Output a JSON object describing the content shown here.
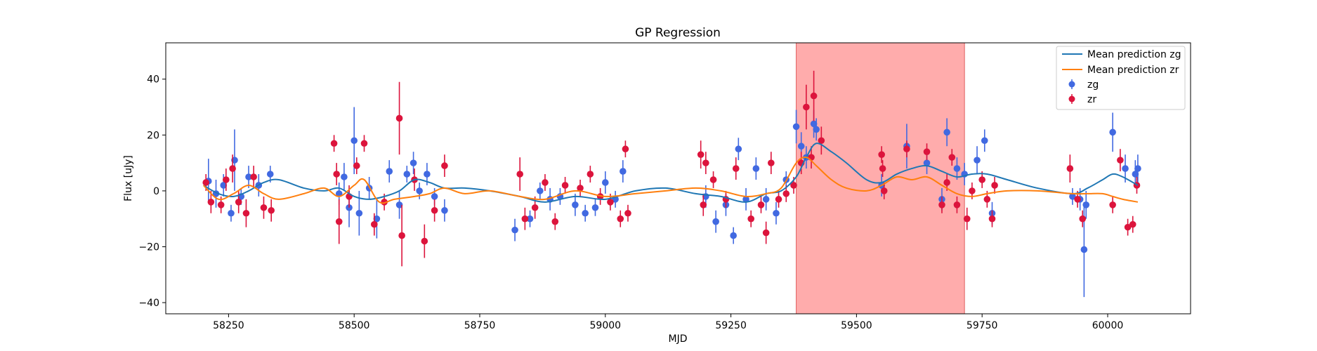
{
  "chart_data": {
    "type": "scatter",
    "title": "GP Regression",
    "xlabel": "MJD",
    "ylabel": "Flux [uJy]",
    "xlim": [
      58125,
      60165
    ],
    "ylim": [
      -44,
      53
    ],
    "xticks": [
      58250,
      58500,
      58750,
      59000,
      59250,
      59500,
      59750,
      60000
    ],
    "yticks": [
      -40,
      -20,
      0,
      20,
      40
    ],
    "grid": false,
    "legend_position": "top-right",
    "highlight_span": {
      "x": [
        59380,
        59715
      ],
      "color": "#ff7f7f"
    },
    "lines": [
      {
        "name": "Mean prediction zg",
        "color": "#1f77b4",
        "x": [
          58200,
          58230,
          58260,
          58290,
          58320,
          58350,
          58400,
          58440,
          58470,
          58500,
          58530,
          58560,
          58590,
          58620,
          58650,
          58680,
          58720,
          58770,
          58830,
          58880,
          58940,
          59000,
          59060,
          59120,
          59180,
          59230,
          59280,
          59320,
          59350,
          59380,
          59400,
          59420,
          59450,
          59480,
          59520,
          59550,
          59580,
          59610,
          59640,
          59670,
          59700,
          59730,
          59760,
          59800,
          59860,
          59930,
          59960,
          59990,
          60010,
          60030,
          60060
        ],
        "y": [
          2,
          -1,
          -2,
          0,
          3,
          4,
          1,
          0,
          1,
          -2,
          -3,
          -2,
          0,
          4,
          3,
          1,
          1,
          0,
          -2,
          -4,
          -2,
          -3,
          0,
          1,
          -1,
          -2,
          -4,
          -1,
          0,
          5,
          12,
          17,
          14,
          10,
          4,
          3,
          6,
          8,
          9,
          7,
          5,
          6,
          6,
          4,
          1,
          -1,
          1,
          4,
          6,
          5,
          2
        ]
      },
      {
        "name": "Mean prediction zr",
        "color": "#ff7f0e",
        "x": [
          58200,
          58230,
          58260,
          58290,
          58320,
          58350,
          58400,
          58440,
          58470,
          58500,
          58520,
          58550,
          58580,
          58620,
          58650,
          58680,
          58720,
          58770,
          58830,
          58880,
          58940,
          59000,
          59060,
          59120,
          59180,
          59230,
          59280,
          59320,
          59350,
          59380,
          59400,
          59420,
          59450,
          59480,
          59520,
          59550,
          59580,
          59610,
          59640,
          59670,
          59700,
          59730,
          59760,
          59800,
          59860,
          59930,
          59960,
          59990,
          60010,
          60030,
          60060
        ],
        "y": [
          2,
          -3,
          -1,
          2,
          -1,
          -3,
          -1,
          1,
          -2,
          2,
          4,
          -4,
          -3,
          -2,
          -1,
          1,
          -1,
          0,
          -2,
          -3,
          0,
          -2,
          -1,
          0,
          1,
          0,
          -2,
          -1,
          1,
          10,
          12,
          9,
          4,
          1,
          0,
          2,
          5,
          4,
          5,
          2,
          -1,
          -2,
          -1,
          0,
          0,
          -1,
          -1,
          -1,
          -2,
          -3,
          -4
        ]
      }
    ],
    "series": [
      {
        "name": "zg",
        "color": "#4169e1",
        "points": [
          [
            58210,
            3.5,
            8
          ],
          [
            58225,
            -1,
            5
          ],
          [
            58240,
            2,
            4
          ],
          [
            58255,
            -8,
            3
          ],
          [
            58262,
            11,
            11
          ],
          [
            58275,
            -2,
            3
          ],
          [
            58290,
            5,
            4
          ],
          [
            58310,
            2,
            4
          ],
          [
            58333,
            6,
            3
          ],
          [
            58470,
            -1,
            4
          ],
          [
            58480,
            5,
            5
          ],
          [
            58490,
            -6,
            7
          ],
          [
            58500,
            18,
            12
          ],
          [
            58510,
            -8,
            8
          ],
          [
            58530,
            1,
            4
          ],
          [
            58545,
            -10,
            7
          ],
          [
            58570,
            7,
            4
          ],
          [
            58590,
            -5,
            5
          ],
          [
            58605,
            6,
            3
          ],
          [
            58618,
            10,
            4
          ],
          [
            58630,
            0,
            3
          ],
          [
            58645,
            6,
            4
          ],
          [
            58660,
            -2,
            3
          ],
          [
            58680,
            -7,
            4
          ],
          [
            58820,
            -14,
            4
          ],
          [
            58850,
            -10,
            3
          ],
          [
            58870,
            0,
            3
          ],
          [
            58890,
            -3,
            4
          ],
          [
            58910,
            -2,
            3
          ],
          [
            58940,
            -5,
            4
          ],
          [
            58960,
            -8,
            3
          ],
          [
            58980,
            -6,
            3
          ],
          [
            59000,
            3,
            4
          ],
          [
            59020,
            -3,
            3
          ],
          [
            59035,
            7,
            4
          ],
          [
            59200,
            -2,
            4
          ],
          [
            59220,
            -11,
            4
          ],
          [
            59240,
            -5,
            4
          ],
          [
            59255,
            -16,
            3
          ],
          [
            59265,
            15,
            4
          ],
          [
            59280,
            -3,
            4
          ],
          [
            59300,
            8,
            4
          ],
          [
            59320,
            -3,
            4
          ],
          [
            59340,
            -8,
            4
          ],
          [
            59360,
            4,
            3
          ],
          [
            59380,
            23,
            6
          ],
          [
            59390,
            16,
            5
          ],
          [
            59400,
            12,
            4
          ],
          [
            59415,
            24,
            5
          ],
          [
            59420,
            22,
            4
          ],
          [
            59550,
            2,
            4
          ],
          [
            59600,
            16,
            8
          ],
          [
            59640,
            10,
            4
          ],
          [
            59670,
            -3,
            4
          ],
          [
            59680,
            21,
            5
          ],
          [
            59700,
            8,
            4
          ],
          [
            59715,
            6,
            4
          ],
          [
            59740,
            11,
            5
          ],
          [
            59755,
            18,
            4
          ],
          [
            59770,
            -8,
            4
          ],
          [
            59930,
            -2,
            3
          ],
          [
            59945,
            -3,
            4
          ],
          [
            59953,
            -21,
            17
          ],
          [
            59957,
            -5,
            5
          ],
          [
            60010,
            21,
            7
          ],
          [
            60035,
            8,
            5
          ],
          [
            60055,
            6,
            5
          ],
          [
            60060,
            8,
            5
          ]
        ]
      },
      {
        "name": "zr",
        "color": "#dc143c",
        "points": [
          [
            58205,
            3,
            3
          ],
          [
            58215,
            -4,
            4
          ],
          [
            58235,
            -5,
            3
          ],
          [
            58245,
            4,
            4
          ],
          [
            58258,
            8,
            5
          ],
          [
            58270,
            -4,
            4
          ],
          [
            58285,
            -8,
            5
          ],
          [
            58300,
            5,
            4
          ],
          [
            58320,
            -6,
            4
          ],
          [
            58335,
            -7,
            4
          ],
          [
            58460,
            17,
            3
          ],
          [
            58465,
            6,
            4
          ],
          [
            58470,
            -11,
            8
          ],
          [
            58490,
            -2,
            4
          ],
          [
            58505,
            9,
            3
          ],
          [
            58520,
            17,
            3
          ],
          [
            58540,
            -12,
            4
          ],
          [
            58560,
            -4,
            3
          ],
          [
            58590,
            26,
            13
          ],
          [
            58595,
            -16,
            11
          ],
          [
            58620,
            4,
            4
          ],
          [
            58640,
            -18,
            6
          ],
          [
            58660,
            -7,
            4
          ],
          [
            58680,
            9,
            4
          ],
          [
            58830,
            6,
            6
          ],
          [
            58840,
            -10,
            4
          ],
          [
            58860,
            -6,
            4
          ],
          [
            58880,
            3,
            3
          ],
          [
            58900,
            -11,
            3
          ],
          [
            58920,
            2,
            3
          ],
          [
            58950,
            1,
            3
          ],
          [
            58970,
            6,
            3
          ],
          [
            58990,
            -2,
            3
          ],
          [
            59010,
            -4,
            3
          ],
          [
            59030,
            -10,
            3
          ],
          [
            59040,
            15,
            3
          ],
          [
            59045,
            -8,
            3
          ],
          [
            59190,
            13,
            5
          ],
          [
            59195,
            -5,
            4
          ],
          [
            59200,
            10,
            4
          ],
          [
            59215,
            4,
            3
          ],
          [
            59240,
            -3,
            3
          ],
          [
            59260,
            8,
            4
          ],
          [
            59290,
            -10,
            3
          ],
          [
            59310,
            -5,
            3
          ],
          [
            59320,
            -15,
            4
          ],
          [
            59330,
            10,
            4
          ],
          [
            59345,
            -3,
            3
          ],
          [
            59360,
            -1,
            3
          ],
          [
            59375,
            2,
            3
          ],
          [
            59390,
            10,
            4
          ],
          [
            59400,
            30,
            8
          ],
          [
            59410,
            12,
            4
          ],
          [
            59415,
            34,
            9
          ],
          [
            59430,
            18,
            5
          ],
          [
            59550,
            13,
            3
          ],
          [
            59552,
            8,
            3
          ],
          [
            59555,
            0,
            3
          ],
          [
            59600,
            15,
            3
          ],
          [
            59640,
            14,
            3
          ],
          [
            59670,
            -5,
            3
          ],
          [
            59680,
            3,
            3
          ],
          [
            59690,
            12,
            3
          ],
          [
            59700,
            -5,
            3
          ],
          [
            59720,
            -10,
            4
          ],
          [
            59730,
            0,
            3
          ],
          [
            59750,
            4,
            3
          ],
          [
            59760,
            -3,
            3
          ],
          [
            59770,
            -10,
            3
          ],
          [
            59775,
            2,
            3
          ],
          [
            59925,
            8,
            5
          ],
          [
            59940,
            -3,
            3
          ],
          [
            59950,
            -10,
            3
          ],
          [
            60010,
            -5,
            3
          ],
          [
            60025,
            11,
            4
          ],
          [
            60040,
            -13,
            3
          ],
          [
            60050,
            -12,
            3
          ],
          [
            60058,
            2,
            3
          ]
        ]
      }
    ]
  }
}
